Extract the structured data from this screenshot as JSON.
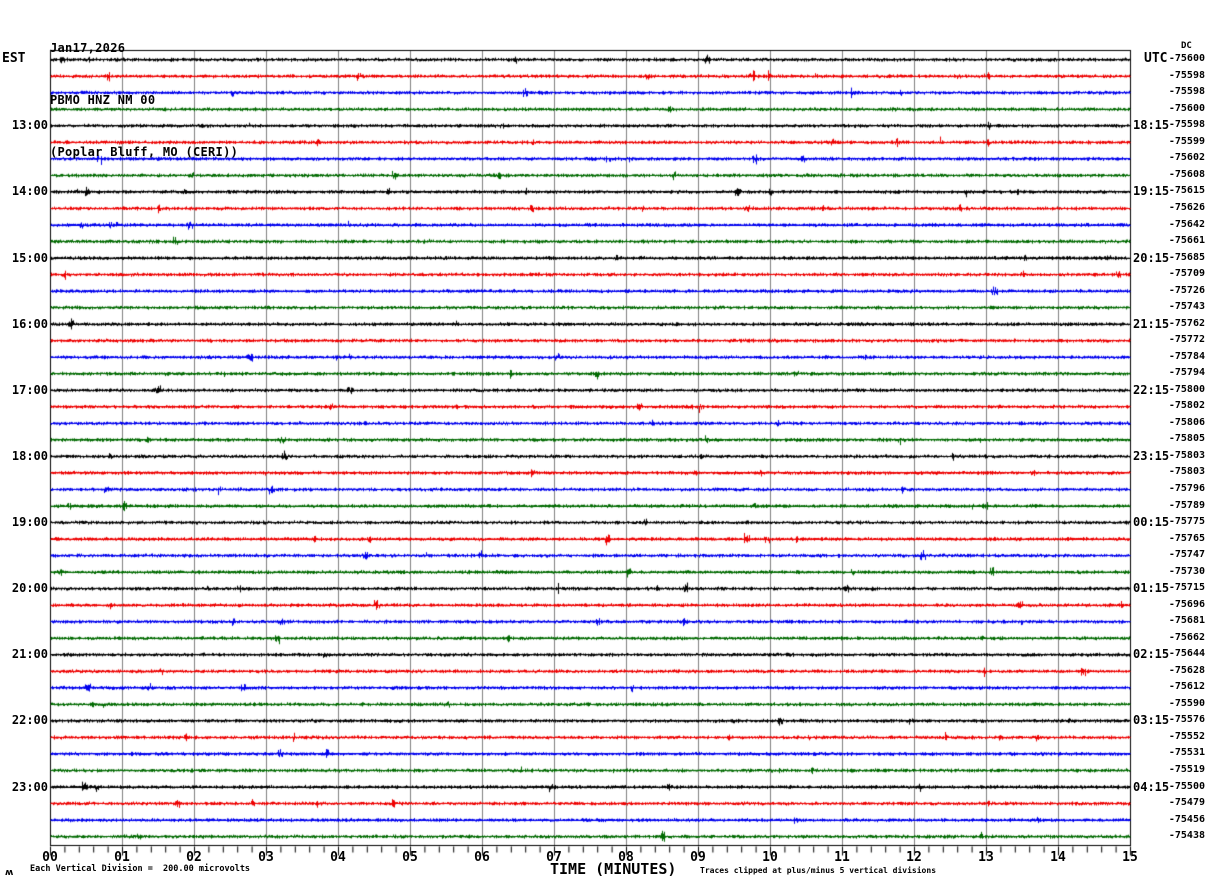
{
  "header": {
    "date": "Jan17,2026",
    "station": "PBMO HNZ NM 00",
    "location": "(Poplar Bluff, MO (CERI))"
  },
  "axes": {
    "left_timezone": "EST",
    "right_timezone": "UTC",
    "dc_header": "DC",
    "x_title": "TIME (MINUTES)"
  },
  "footer": {
    "scale_note": "Each Vertical Division =  200.00 microvolts",
    "clip_note": "Traces clipped at plus/minus 5 vertical divisions",
    "corner_mark": "ʍ"
  },
  "colors": {
    "trace_cycle": [
      "#000000",
      "#ee0000",
      "#0000ee",
      "#006a00"
    ],
    "gridline": "#808080",
    "frame": "#000000",
    "background": "#ffffff"
  },
  "chart_data": {
    "type": "line",
    "subtype": "helicorder-seismogram",
    "title": "PBMO HNZ NM 00 (Poplar Bluff, MO (CERI)) Jan17,2026",
    "xlabel": "TIME (MINUTES)",
    "x_range_minutes": [
      0,
      15
    ],
    "x_ticks": [
      "00",
      "01",
      "02",
      "03",
      "04",
      "05",
      "06",
      "07",
      "08",
      "09",
      "10",
      "11",
      "12",
      "13",
      "14",
      "15"
    ],
    "minor_ticks_per_minute": 5,
    "rows": 48,
    "row_duration_minutes": 15,
    "rows_per_hour": 4,
    "grid": true,
    "trace_color_cycle_names": [
      "black",
      "red",
      "blue",
      "green"
    ],
    "est_hour_labels": [
      {
        "row": 4,
        "label": "13:00"
      },
      {
        "row": 8,
        "label": "14:00"
      },
      {
        "row": 12,
        "label": "15:00"
      },
      {
        "row": 16,
        "label": "16:00"
      },
      {
        "row": 20,
        "label": "17:00"
      },
      {
        "row": 24,
        "label": "18:00"
      },
      {
        "row": 28,
        "label": "19:00"
      },
      {
        "row": 32,
        "label": "20:00"
      },
      {
        "row": 36,
        "label": "21:00"
      },
      {
        "row": 40,
        "label": "22:00"
      },
      {
        "row": 44,
        "label": "23:00"
      }
    ],
    "utc_hour_labels": [
      {
        "row": 4,
        "label": "18:15"
      },
      {
        "row": 8,
        "label": "19:15"
      },
      {
        "row": 12,
        "label": "20:15"
      },
      {
        "row": 16,
        "label": "21:15"
      },
      {
        "row": 20,
        "label": "22:15"
      },
      {
        "row": 24,
        "label": "23:15"
      },
      {
        "row": 28,
        "label": "00:15"
      },
      {
        "row": 32,
        "label": "01:15"
      },
      {
        "row": 36,
        "label": "02:15"
      },
      {
        "row": 40,
        "label": "03:15"
      },
      {
        "row": 44,
        "label": "04:15"
      }
    ],
    "dc_offsets": [
      -75600,
      -75598,
      -75598,
      -75600,
      -75598,
      -75599,
      -75602,
      -75608,
      -75615,
      -75626,
      -75642,
      -75661,
      -75685,
      -75709,
      -75726,
      -75743,
      -75762,
      -75772,
      -75784,
      -75794,
      -75800,
      -75802,
      -75806,
      -75805,
      -75803,
      -75803,
      -75796,
      -75789,
      -75775,
      -75765,
      -75747,
      -75730,
      -75715,
      -75696,
      -75681,
      -75662,
      -75644,
      -75628,
      -75612,
      -75590,
      -75576,
      -75552,
      -75531,
      -75519,
      -75500,
      -75479,
      -75456,
      -75438
    ],
    "vertical_division_microvolts": 200.0,
    "clip_divisions": 5
  }
}
